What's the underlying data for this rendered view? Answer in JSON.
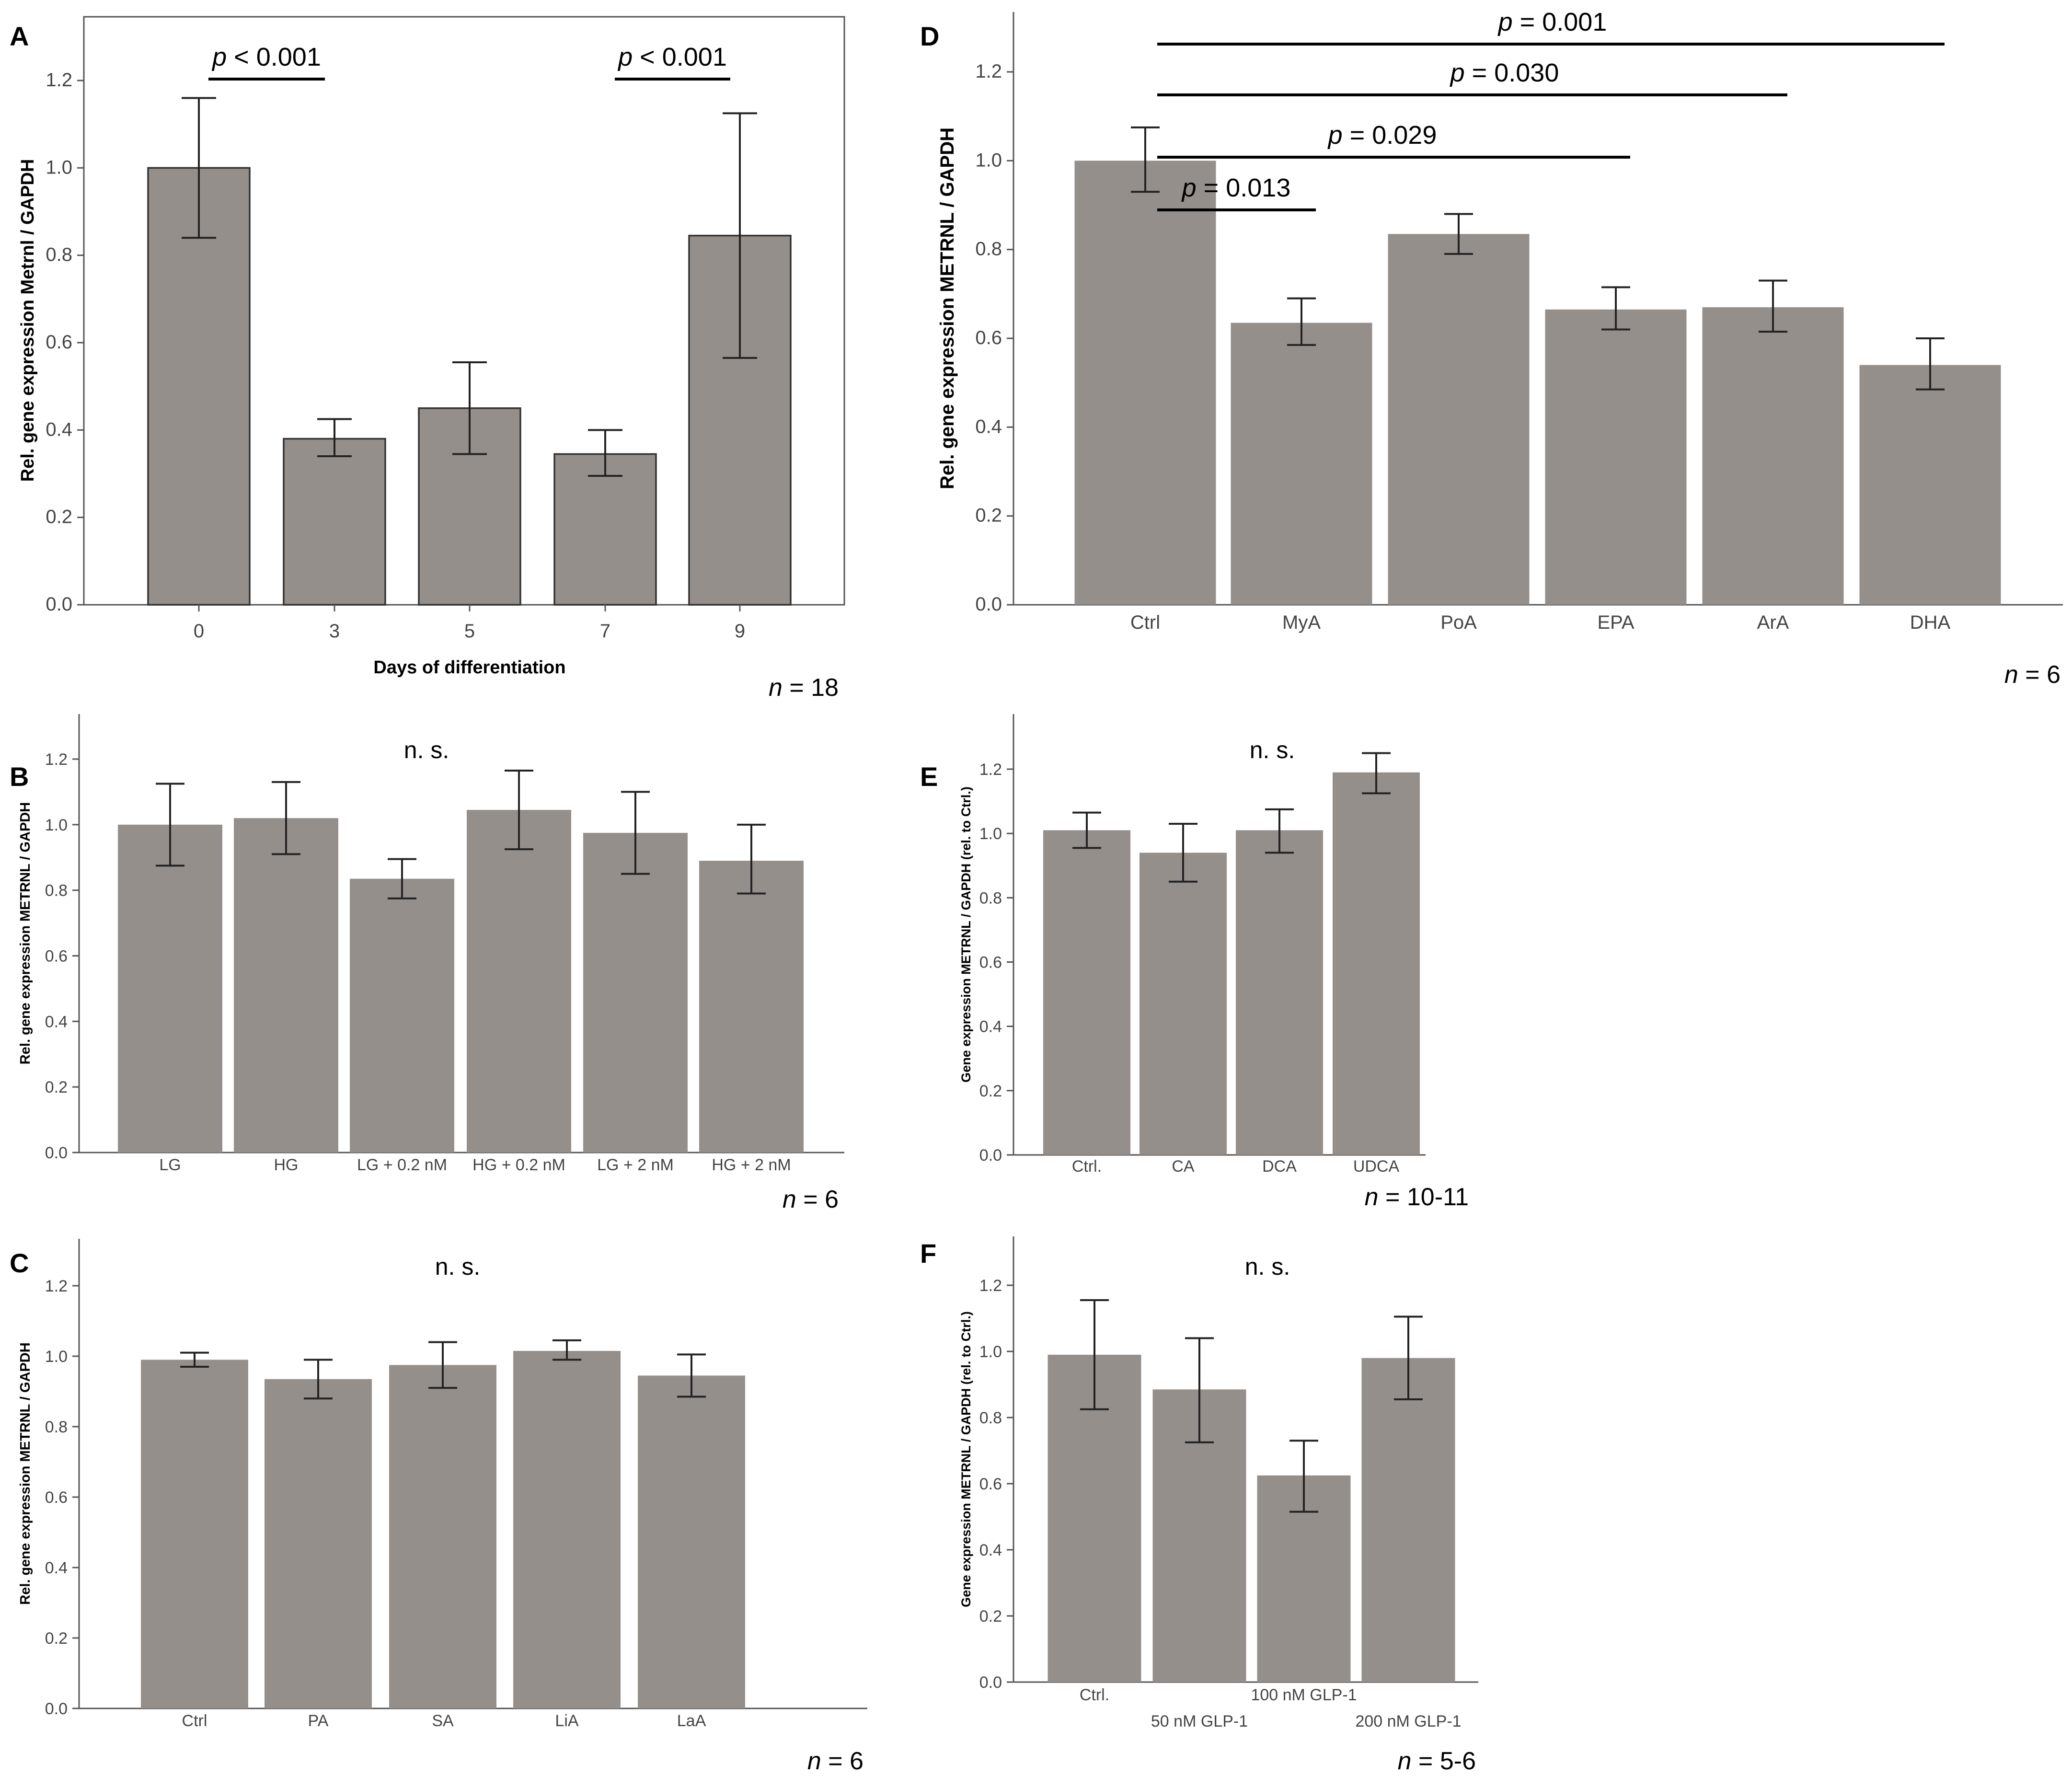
{
  "chart_data": [
    {
      "panel": "A",
      "type": "bar",
      "ylabel": "Rel. gene expression Metrnl / GAPDH",
      "xlabel": "Days of differentiation",
      "categories": [
        "0",
        "3",
        "5",
        "7",
        "9"
      ],
      "values": [
        1.0,
        0.38,
        0.45,
        0.345,
        0.845
      ],
      "err_low": [
        0.84,
        0.34,
        0.345,
        0.295,
        0.565
      ],
      "err_high": [
        1.16,
        0.425,
        0.555,
        0.4,
        1.125
      ],
      "ylim": [
        0,
        1.3
      ],
      "yticks": [
        "0.0",
        "0.2",
        "0.4",
        "0.6",
        "0.8",
        "1.0",
        "1.2"
      ],
      "significance": [
        {
          "from": 0,
          "to": 1,
          "label": "p < 0.001"
        },
        {
          "from": 3,
          "to": 4,
          "label": "p < 0.001"
        }
      ],
      "n_label": "n = 18"
    },
    {
      "panel": "B",
      "type": "bar",
      "ylabel": "Rel. gene expression METRNL / GAPDH",
      "xlabel": "",
      "categories": [
        "LG",
        "HG",
        "LG + 0.2 nM",
        "HG + 0.2 nM",
        "LG + 2 nM",
        "HG + 2 nM"
      ],
      "values": [
        1.0,
        1.02,
        0.835,
        1.045,
        0.975,
        0.89
      ],
      "err_low": [
        0.875,
        0.91,
        0.775,
        0.925,
        0.85,
        0.79
      ],
      "err_high": [
        1.125,
        1.13,
        0.895,
        1.165,
        1.1,
        1.0
      ],
      "ylim": [
        0,
        1.35
      ],
      "yticks": [
        "0.0",
        "0.2",
        "0.4",
        "0.6",
        "0.8",
        "1.0",
        "1.2"
      ],
      "annotation": "n. s.",
      "n_label": "n = 6"
    },
    {
      "panel": "C",
      "type": "bar",
      "ylabel": "Rel. gene expression METRNL / GAPDH",
      "xlabel": "",
      "categories": [
        "Ctrl",
        "PA",
        "SA",
        "LiA",
        "LaA"
      ],
      "values": [
        0.99,
        0.935,
        0.975,
        1.015,
        0.945
      ],
      "err_low": [
        0.97,
        0.88,
        0.91,
        0.99,
        0.885
      ],
      "err_high": [
        1.01,
        0.99,
        1.04,
        1.045,
        1.005
      ],
      "ylim": [
        0,
        1.35
      ],
      "yticks": [
        "0.0",
        "0.2",
        "0.4",
        "0.6",
        "0.8",
        "1.0",
        "1.2"
      ],
      "annotation": "n. s.",
      "n_label": "n = 6"
    },
    {
      "panel": "D",
      "type": "bar",
      "ylabel": "Rel. gene expression METRNL / GAPDH",
      "xlabel": "",
      "categories": [
        "Ctrl",
        "MyA",
        "PoA",
        "EPA",
        "ArA",
        "DHA"
      ],
      "values": [
        1.0,
        0.635,
        0.835,
        0.665,
        0.67,
        0.54
      ],
      "err_low": [
        0.93,
        0.585,
        0.79,
        0.62,
        0.615,
        0.485
      ],
      "err_high": [
        1.075,
        0.69,
        0.88,
        0.715,
        0.73,
        0.6
      ],
      "ylim": [
        0,
        1.35
      ],
      "yticks": [
        "0.0",
        "0.2",
        "0.4",
        "0.6",
        "0.8",
        "1.0",
        "1.2"
      ],
      "significance": [
        {
          "from": 0,
          "to": 1,
          "label": "p = 0.013"
        },
        {
          "from": 0,
          "to": 3,
          "label": "p = 0.029"
        },
        {
          "from": 0,
          "to": 4,
          "label": "p = 0.030"
        },
        {
          "from": 0,
          "to": 5,
          "label": "p = 0.001"
        }
      ],
      "n_label": "n = 6"
    },
    {
      "panel": "E",
      "type": "bar",
      "ylabel": "Gene expression METRNL / GAPDH (rel. to Ctrl.)",
      "xlabel": "",
      "categories": [
        "Ctrl.",
        "CA",
        "DCA",
        "UDCA"
      ],
      "values": [
        1.01,
        0.94,
        1.01,
        1.19
      ],
      "err_low": [
        0.955,
        0.85,
        0.94,
        1.125
      ],
      "err_high": [
        1.065,
        1.03,
        1.075,
        1.25
      ],
      "ylim": [
        0,
        1.35
      ],
      "yticks": [
        "0.0",
        "0.2",
        "0.4",
        "0.6",
        "0.8",
        "1.0",
        "1.2"
      ],
      "annotation": "n. s.",
      "n_label": "n = 10-11"
    },
    {
      "panel": "F",
      "type": "bar",
      "ylabel": "Gene expression METRNL / GAPDH (rel. to Ctrl.)",
      "xlabel": "",
      "categories": [
        "Ctrl.",
        "50 nM GLP-1",
        "100 nM GLP-1",
        "200 nM GLP-1"
      ],
      "values": [
        0.99,
        0.885,
        0.625,
        0.98
      ],
      "err_low": [
        0.825,
        0.725,
        0.515,
        0.855
      ],
      "err_high": [
        1.155,
        1.04,
        0.73,
        1.105
      ],
      "ylim": [
        0,
        1.35
      ],
      "yticks": [
        "0.0",
        "0.2",
        "0.4",
        "0.6",
        "0.8",
        "1.0",
        "1.2"
      ],
      "annotation": "n. s.",
      "n_label": "n = 5-6"
    }
  ]
}
